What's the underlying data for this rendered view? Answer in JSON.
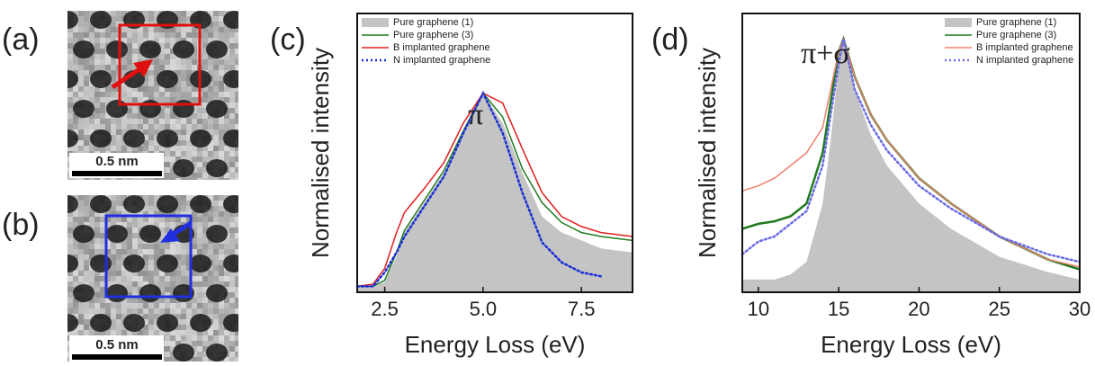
{
  "panels": [
    {
      "label": "(a)",
      "scale_bar": "0.5 nm"
    },
    {
      "label": "(b)",
      "scale_bar": "0.5 nm"
    }
  ],
  "chart_data": [
    {
      "type": "line",
      "panel_label": "(c)",
      "annotation": "π",
      "x_label": "Energy Loss (eV)",
      "y_label": "Normalised intensity",
      "x": [
        1.8,
        2.2,
        2.5,
        2.8,
        3.0,
        3.5,
        4.0,
        4.5,
        5.0,
        5.5,
        6.0,
        6.5,
        7.0,
        7.5,
        8.0,
        8.8
      ],
      "xlim": [
        1.8,
        8.8
      ],
      "ylim": [
        0,
        1.4
      ],
      "xticks": [
        {
          "value": 2.5,
          "label": "2.5"
        },
        {
          "value": 5,
          "label": "5.0"
        },
        {
          "value": 7.5,
          "label": "7.5"
        }
      ],
      "legend": "upper left",
      "series": [
        {
          "name": "Pure graphene (1)",
          "color": "#c4c4c4",
          "area": true,
          "values": [
            0.03,
            0.03,
            0.05,
            0.18,
            0.3,
            0.45,
            0.6,
            0.8,
            1.0,
            0.85,
            0.6,
            0.38,
            0.3,
            0.26,
            0.22,
            0.2
          ]
        },
        {
          "name": "Pure graphene (3)",
          "color": "#1f7a1f",
          "values": [
            0.03,
            0.03,
            0.06,
            0.2,
            0.31,
            0.46,
            0.61,
            0.81,
            1.0,
            0.88,
            0.62,
            0.45,
            0.35,
            0.3,
            0.28,
            0.26
          ]
        },
        {
          "name": "B implanted graphene",
          "color": "#e02020",
          "values": [
            0.03,
            0.04,
            0.12,
            0.3,
            0.4,
            0.52,
            0.65,
            0.85,
            1.0,
            0.95,
            0.72,
            0.5,
            0.38,
            0.33,
            0.3,
            0.28
          ]
        },
        {
          "name": "N implanted graphene",
          "color": "#1a2fd6",
          "dash": "dotted",
          "values": [
            0.03,
            0.03,
            0.1,
            0.2,
            0.28,
            0.43,
            0.58,
            0.8,
            1.0,
            0.8,
            0.5,
            0.25,
            0.15,
            0.1,
            0.08,
            null
          ]
        }
      ]
    },
    {
      "type": "line",
      "panel_label": "(d)",
      "annotation": "π+σ",
      "x_label": "Energy Loss (eV)",
      "y_label": "Normalised intensity",
      "x": [
        9,
        10,
        11,
        12,
        13,
        14,
        14.5,
        15,
        15.3,
        16,
        17,
        18,
        20,
        22,
        25,
        28,
        30
      ],
      "xlim": [
        9,
        30
      ],
      "ylim": [
        0,
        1.1
      ],
      "xticks": [
        10,
        15,
        20,
        25,
        30
      ],
      "legend": "upper right",
      "series": [
        {
          "name": "Pure graphene (1)",
          "color": "#c4c4c4",
          "area": true,
          "values": [
            0.05,
            0.05,
            0.05,
            0.07,
            0.12,
            0.35,
            0.6,
            0.9,
            1.0,
            0.8,
            0.62,
            0.5,
            0.35,
            0.25,
            0.14,
            0.08,
            0.05
          ]
        },
        {
          "name": "Pure graphene (3)",
          "color": "#1f7a1f",
          "values": [
            0.25,
            0.27,
            0.28,
            0.3,
            0.35,
            0.55,
            0.75,
            0.95,
            1.0,
            0.85,
            0.7,
            0.6,
            0.45,
            0.35,
            0.22,
            0.13,
            0.09
          ]
        },
        {
          "name": "B implanted graphene",
          "color": "#f08070",
          "values": [
            0.4,
            0.42,
            0.45,
            0.5,
            0.55,
            0.65,
            0.8,
            0.95,
            1.0,
            0.85,
            0.7,
            0.6,
            0.45,
            0.35,
            0.22,
            0.13,
            0.1
          ]
        },
        {
          "name": "N implanted graphene",
          "color": "#6a6ae6",
          "dash": "dotted",
          "values": [
            0.15,
            0.2,
            0.22,
            0.27,
            0.32,
            0.5,
            0.7,
            0.9,
            1.0,
            0.8,
            0.66,
            0.56,
            0.42,
            0.33,
            0.22,
            0.15,
            0.12
          ]
        }
      ]
    }
  ]
}
